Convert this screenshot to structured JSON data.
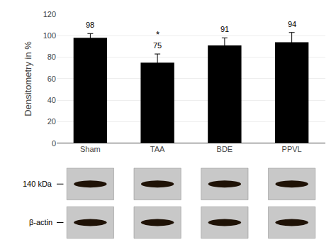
{
  "chart_data": {
    "type": "bar",
    "categories": [
      "Sham",
      "TAA",
      "BDE",
      "PPVL"
    ],
    "values": [
      98,
      75,
      91,
      94
    ],
    "errors": [
      4,
      8,
      7,
      9
    ],
    "color": "#000000",
    "ylabel": "Densitometry in %",
    "ylim": [
      0,
      120
    ],
    "yticks": [
      0,
      20,
      40,
      60,
      80,
      100,
      120
    ],
    "data_labels": true,
    "annotations": [
      {
        "text": "*",
        "category": "TAA"
      },
      {
        "text": "140 kDa"
      },
      {
        "text": "β-actin"
      }
    ]
  }
}
